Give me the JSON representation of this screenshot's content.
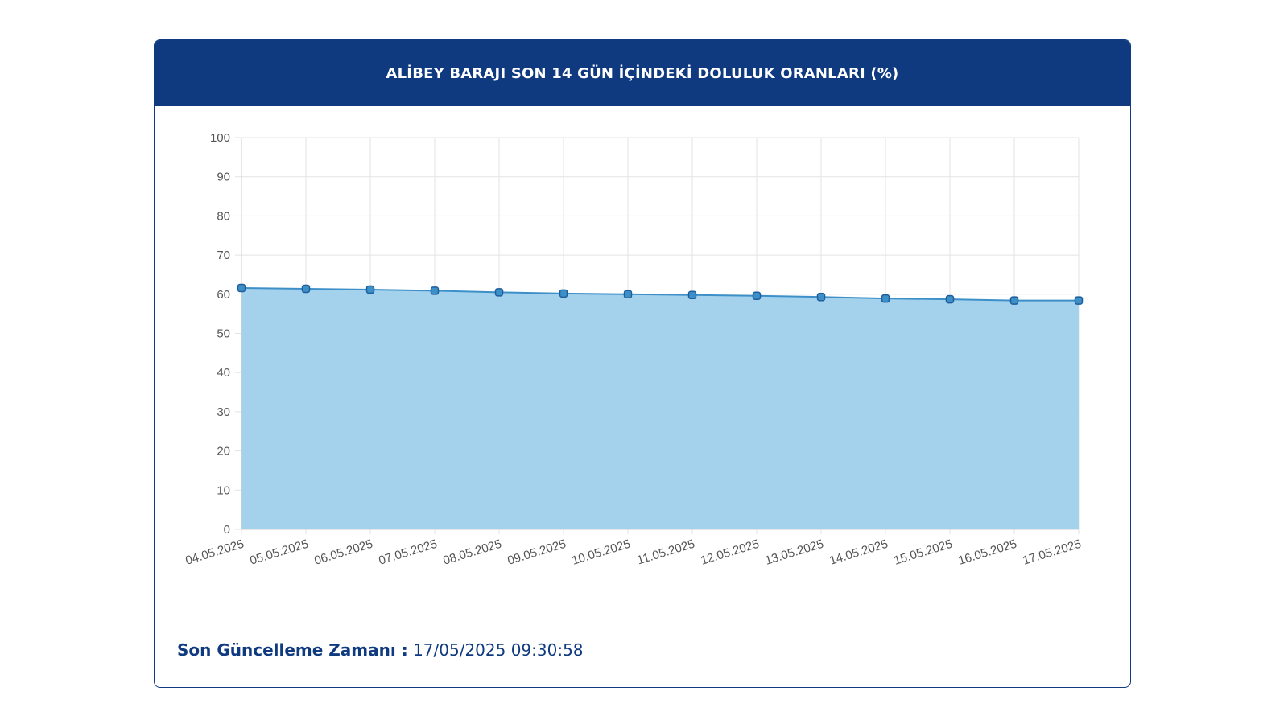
{
  "header": {
    "title": "ALİBEY BARAJI SON 14 GÜN İÇİNDEKİ DOLULUK ORANLARI (%)"
  },
  "footer": {
    "label": "Son Güncelleme Zamanı :",
    "value": "17/05/2025 09:30:58"
  },
  "colors": {
    "header_bg": "#0f3a80",
    "area_fill": "#9fd0ec",
    "line": "#3d8fc8",
    "marker_fill": "#3d8fc8",
    "marker_stroke": "#1f5e9c"
  },
  "chart_data": {
    "type": "area",
    "title": "ALİBEY BARAJI SON 14 GÜN İÇİNDEKİ DOLULUK ORANLARI (%)",
    "xlabel": "",
    "ylabel": "",
    "categories": [
      "04.05.2025",
      "05.05.2025",
      "06.05.2025",
      "07.05.2025",
      "08.05.2025",
      "09.05.2025",
      "10.05.2025",
      "11.05.2025",
      "12.05.2025",
      "13.05.2025",
      "14.05.2025",
      "15.05.2025",
      "16.05.2025",
      "17.05.2025"
    ],
    "values": [
      61.6,
      61.4,
      61.2,
      60.9,
      60.5,
      60.2,
      60.0,
      59.8,
      59.6,
      59.3,
      58.9,
      58.7,
      58.4,
      58.4
    ],
    "ylim": [
      0,
      100
    ],
    "yticks": [
      0,
      10,
      20,
      30,
      40,
      50,
      60,
      70,
      80,
      90,
      100
    ],
    "grid": true,
    "legend": "none"
  }
}
